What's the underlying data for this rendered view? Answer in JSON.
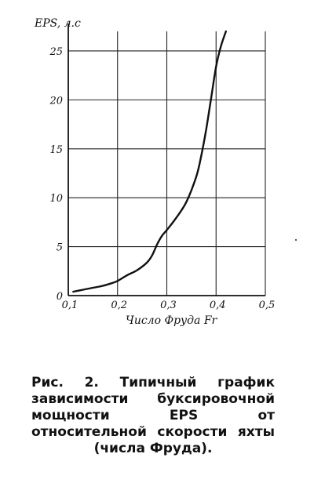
{
  "chart_data": {
    "type": "line",
    "xlabel": "Число Фруда Fr",
    "ylabel": "EPS, л.с",
    "xlim": [
      0.1,
      0.5
    ],
    "ylim": [
      0,
      27
    ],
    "x_ticks": [
      "0,1",
      "0,2",
      "0,3",
      "0,4",
      "0,5"
    ],
    "y_ticks": [
      "0",
      "5",
      "10",
      "15",
      "20",
      "25"
    ],
    "y_tick_values": [
      0,
      5,
      10,
      15,
      20,
      25
    ],
    "x_tick_values": [
      0.1,
      0.2,
      0.3,
      0.4,
      0.5
    ],
    "grid": true,
    "series": [
      {
        "x": [
          0.11,
          0.13,
          0.15,
          0.17,
          0.19,
          0.2,
          0.22,
          0.24,
          0.26,
          0.27,
          0.28,
          0.29,
          0.3,
          0.32,
          0.34,
          0.36,
          0.37,
          0.38,
          0.39,
          0.4,
          0.41,
          0.42
        ],
        "y": [
          0.4,
          0.6,
          0.8,
          1.0,
          1.3,
          1.5,
          2.1,
          2.6,
          3.4,
          4.1,
          5.2,
          6.1,
          6.7,
          8.0,
          9.6,
          12.2,
          14.3,
          17.0,
          20.2,
          23.4,
          25.5,
          27.0
        ]
      }
    ]
  },
  "caption": "Рис. 2. Типичный график зависимости буксировочной мощности EPS от относительной скорости яхты (числа Фруда)."
}
